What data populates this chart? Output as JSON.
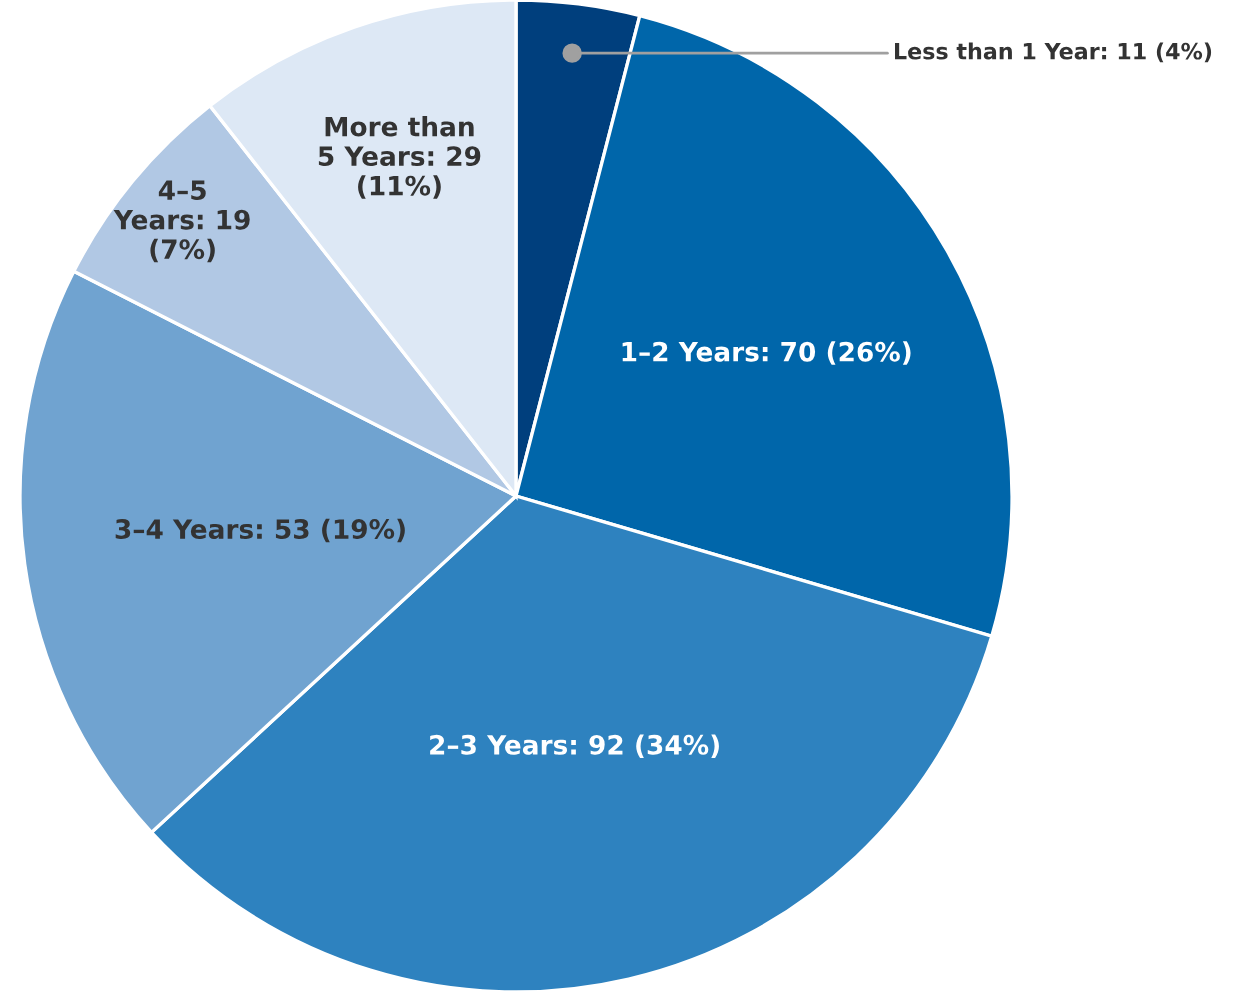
{
  "chart_data": {
    "type": "pie",
    "categories": [
      "Less than 1 Year",
      "1–2 Years",
      "2–3 Years",
      "3–4 Years",
      "4–5\nYears",
      "More than\n5 Years"
    ],
    "values": [
      11,
      70,
      92,
      53,
      19,
      29
    ],
    "value_labels": [
      "11 (4%)",
      "70 (26%)",
      "92 (34%)",
      "53 (19%)",
      "19\n(7%)",
      "29\n(11%)"
    ],
    "colors": [
      "#003f7d",
      "#0066aa",
      "#2e82bf",
      "#70a3d0",
      "#b1c8e4",
      "#dde8f5"
    ]
  }
}
